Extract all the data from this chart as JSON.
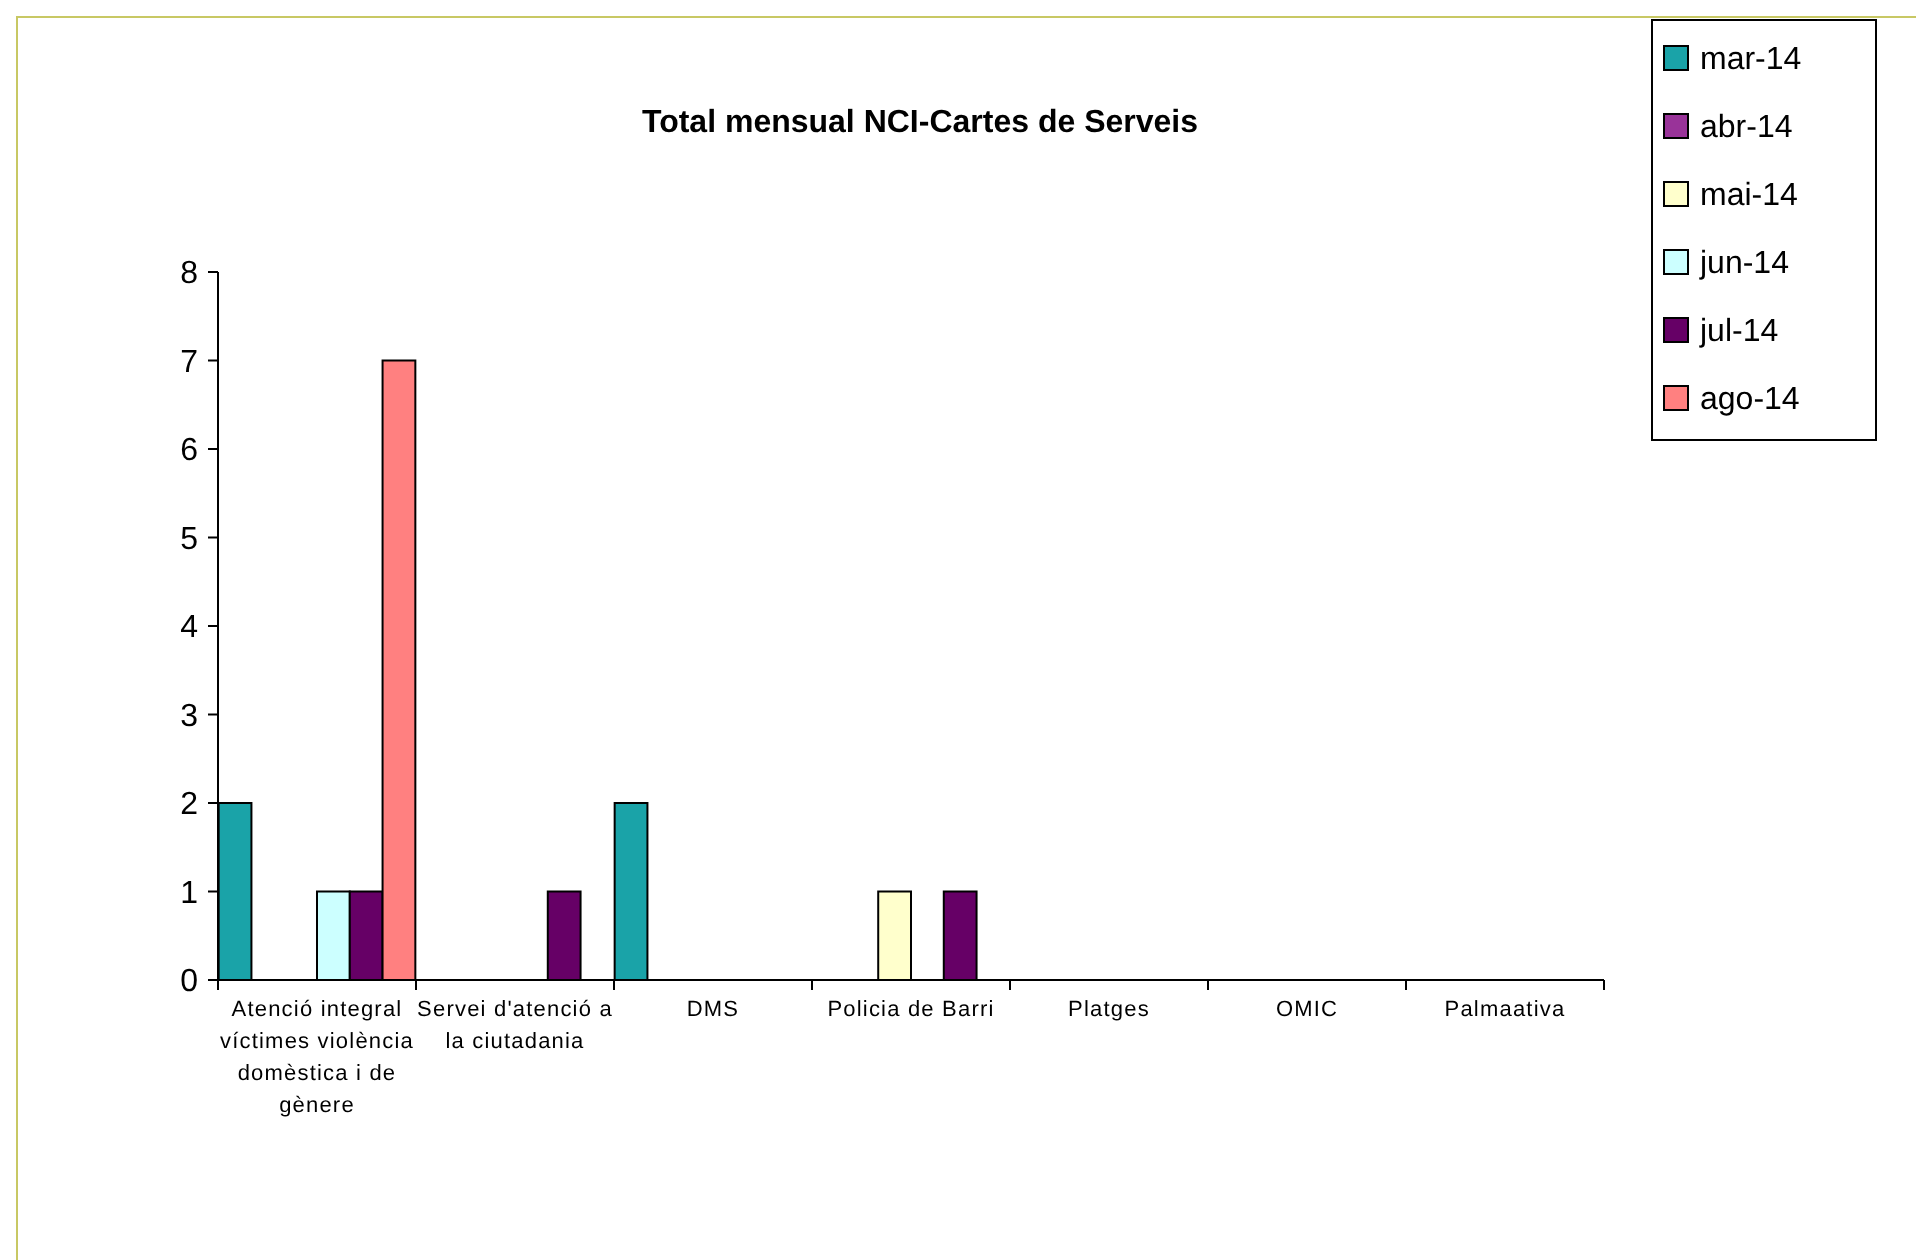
{
  "chart_data": {
    "type": "bar",
    "title": "Total mensual NCI-Cartes de Serveis",
    "categories": [
      "Atenció integral víctimes violència domèstica i de gènere",
      "Servei d'atenció a la ciutadania",
      "DMS",
      "Policia de Barri",
      "Platges",
      "OMIC",
      "Palmaativa"
    ],
    "series": [
      {
        "name": "mar-14",
        "color": "#1aa3a8",
        "values": [
          2,
          0,
          2,
          0,
          0,
          0,
          0
        ]
      },
      {
        "name": "abr-14",
        "color": "#993399",
        "values": [
          0,
          0,
          0,
          0,
          0,
          0,
          0
        ]
      },
      {
        "name": "mai-14",
        "color": "#ffffcc",
        "values": [
          0,
          0,
          0,
          1,
          0,
          0,
          0
        ]
      },
      {
        "name": "jun-14",
        "color": "#ccffff",
        "values": [
          1,
          0,
          0,
          0,
          0,
          0,
          0
        ]
      },
      {
        "name": "jul-14",
        "color": "#660066",
        "values": [
          1,
          1,
          0,
          1,
          0,
          0,
          0
        ]
      },
      {
        "name": "ago-14",
        "color": "#ff8080",
        "values": [
          7,
          0,
          0,
          0,
          0,
          0,
          0
        ]
      }
    ],
    "ylim": [
      0,
      8
    ],
    "yticks": [
      0,
      1,
      2,
      3,
      4,
      5,
      6,
      7,
      8
    ],
    "grid": false,
    "legend": "top right"
  }
}
